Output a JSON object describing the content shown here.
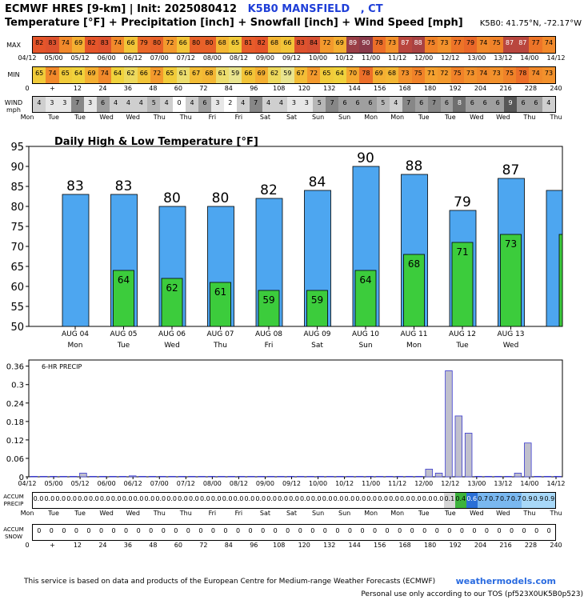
{
  "header": {
    "title_prefix": "ECMWF HRES [9-km] | Init: 2025080412",
    "station": "K5B0 MANSFIELD",
    "state": ", CT",
    "subtitle": "Temperature [°F] + Precipitation [inch] + Snowfall [inch] + Wind Speed [mph]",
    "coords": "K5B0: 41.75°N, -72.17°W"
  },
  "labels": {
    "max": "MAX",
    "min": "MIN",
    "wind": "WIND",
    "wind_unit": "mph",
    "accum_precip_1": "ACCUM",
    "accum_precip_2": "PRECIP",
    "accum_snow_1": "ACCUM",
    "accum_snow_2": "SNOW"
  },
  "time_labels": [
    "04/12",
    "05/00",
    "05/12",
    "06/00",
    "06/12",
    "07/00",
    "07/12",
    "08/00",
    "08/12",
    "09/00",
    "09/12",
    "10/00",
    "10/12",
    "11/00",
    "11/12",
    "12/00",
    "12/12",
    "13/00",
    "13/12",
    "14/00",
    "14/12"
  ],
  "hour_labels": [
    "0",
    "+",
    "12",
    "24",
    "36",
    "48",
    "60",
    "72",
    "84",
    "96",
    "108",
    "120",
    "132",
    "144",
    "156",
    "168",
    "180",
    "192",
    "204",
    "216",
    "228",
    "240"
  ],
  "day_labels": [
    "Mon",
    "Tue",
    "Tue",
    "Wed",
    "Wed",
    "Thu",
    "Thu",
    "Fri",
    "Fri",
    "Sat",
    "Sat",
    "Sun",
    "Sun",
    "Mon",
    "Mon",
    "Tue",
    "Tue",
    "Wed",
    "Wed",
    "Thu",
    "Thu"
  ],
  "max_temps": [
    82,
    83,
    74,
    69,
    82,
    83,
    74,
    66,
    79,
    80,
    72,
    66,
    80,
    80,
    68,
    65,
    81,
    82,
    68,
    66,
    83,
    84,
    72,
    69,
    89,
    90,
    78,
    73,
    87,
    88,
    75,
    73,
    77,
    79,
    74,
    75,
    87,
    87,
    77,
    74
  ],
  "min_temps": [
    65,
    74,
    65,
    64,
    69,
    74,
    64,
    62,
    66,
    72,
    65,
    61,
    67,
    68,
    61,
    59,
    66,
    69,
    62,
    59,
    67,
    72,
    65,
    64,
    70,
    78,
    69,
    68,
    73,
    75,
    71,
    72,
    75,
    73,
    74,
    73,
    75,
    78,
    74,
    73
  ],
  "wind_speeds": [
    4,
    3,
    3,
    7,
    3,
    6,
    4,
    4,
    4,
    5,
    4,
    0,
    4,
    6,
    3,
    2,
    4,
    7,
    4,
    4,
    3,
    3,
    5,
    7,
    6,
    6,
    6,
    5,
    4,
    7,
    6,
    7,
    6,
    8,
    6,
    6,
    6,
    9,
    6,
    6,
    4
  ],
  "accum_precip": [
    "0.0",
    "0.0",
    "0.0",
    "0.0",
    "0.0",
    "0.0",
    "0.0",
    "0.0",
    "0.0",
    "0.0",
    "0.0",
    "0.0",
    "0.0",
    "0.0",
    "0.0",
    "0.0",
    "0.0",
    "0.0",
    "0.0",
    "0.0",
    "0.0",
    "0.0",
    "0.0",
    "0.0",
    "0.0",
    "0.0",
    "0.0",
    "0.0",
    "0.0",
    "0.0",
    "0.0",
    "0.0",
    "0.0",
    "0.0",
    "0.0",
    "0.0",
    "0.0",
    "0.1",
    "0.4",
    "0.6",
    "0.7",
    "0.7",
    "0.7",
    "0.7",
    "0.9",
    "0.9",
    "0.9"
  ],
  "accum_snow": [
    "0",
    "0",
    "0",
    "0",
    "0",
    "0",
    "0",
    "0",
    "0",
    "0",
    "0",
    "0",
    "0",
    "0",
    "0",
    "0",
    "0",
    "0",
    "0",
    "0",
    "0",
    "0",
    "0",
    "0",
    "0",
    "0",
    "0",
    "0",
    "0",
    "0",
    "0",
    "0",
    "0",
    "0",
    "0",
    "0",
    "0",
    "0",
    "0",
    "0",
    "0",
    "0"
  ],
  "chart_data": [
    {
      "type": "bar",
      "title": "Daily High & Low Temperature [°F]",
      "categories": [
        "AUG 04",
        "AUG 05",
        "AUG 06",
        "AUG 07",
        "AUG 08",
        "AUG 09",
        "AUG 10",
        "AUG 11",
        "AUG 12",
        "AUG 13",
        ""
      ],
      "day_names": [
        "Mon",
        "Tue",
        "Wed",
        "Thu",
        "Fri",
        "Sat",
        "Sun",
        "Mon",
        "Tue",
        "Wed",
        ""
      ],
      "series": [
        {
          "values": [
            83,
            83,
            80,
            80,
            82,
            84,
            90,
            88,
            79,
            87,
            84
          ],
          "color": "#4da6f0"
        },
        {
          "values": [
            null,
            64,
            62,
            61,
            59,
            59,
            64,
            68,
            71,
            73,
            73
          ],
          "color": "#3ccc3c"
        }
      ],
      "high_labels": [
        "83",
        "83",
        "80",
        "80",
        "82",
        "84",
        "90",
        "88",
        "79",
        "87",
        ""
      ],
      "low_labels": [
        "",
        "64",
        "62",
        "61",
        "59",
        "59",
        "64",
        "68",
        "71",
        "73",
        ""
      ],
      "ylim": [
        50,
        95
      ],
      "yticks": [
        50,
        55,
        60,
        65,
        70,
        75,
        80,
        85,
        90,
        95
      ],
      "grid": false
    },
    {
      "type": "bar",
      "title": "6-HR PRECIP",
      "x_labels": [
        "04/12",
        "05/00",
        "05/12",
        "06/00",
        "06/12",
        "07/00",
        "07/12",
        "08/00",
        "08/12",
        "09/00",
        "09/12",
        "10/00",
        "10/12",
        "11/00",
        "11/12",
        "12/00",
        "12/12",
        "13/00",
        "13/12",
        "14/00",
        "14/12"
      ],
      "values": [
        0,
        0,
        0,
        0,
        0,
        0.012,
        0,
        0,
        0,
        0,
        0.003,
        0,
        0,
        0,
        0,
        0,
        0,
        0,
        0,
        0,
        0,
        0,
        0,
        0,
        0,
        0,
        0,
        0,
        0,
        0,
        0,
        0,
        0,
        0,
        0,
        0,
        0,
        0,
        0,
        0,
        0.025,
        0.012,
        0.345,
        0.198,
        0.142,
        0,
        0,
        0,
        0,
        0.012,
        0.11,
        0,
        0,
        0
      ],
      "ylim": [
        0,
        0.38
      ],
      "yticks": [
        0,
        0.06,
        0.12,
        0.18,
        0.24,
        0.3,
        0.36
      ],
      "ytick_labels": [
        "0",
        "0.06",
        "0.12",
        "0.18",
        "0.24",
        "0.3",
        "0.36"
      ],
      "color": "#c0c0cc"
    }
  ],
  "footer": {
    "note": "This service is based on data and products of the European Centre for Medium-range Weather Forecasts (ECMWF)",
    "site": "weathermodels.com",
    "tos": "Personal use only according to our TOS (pf523X0UK5B0p523)"
  }
}
